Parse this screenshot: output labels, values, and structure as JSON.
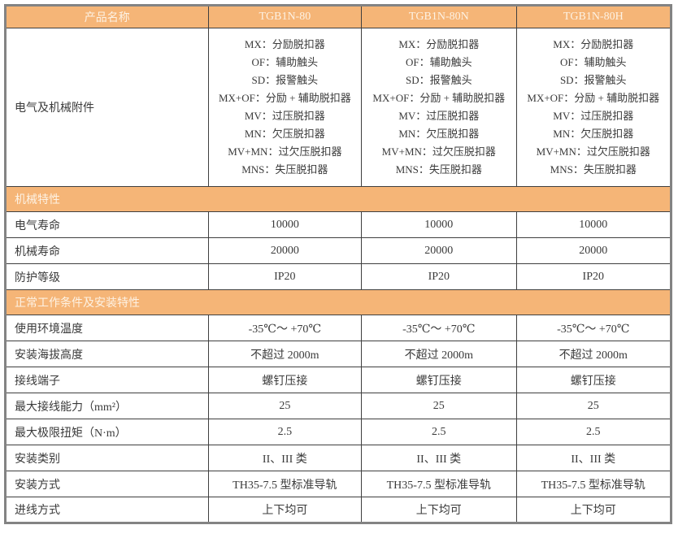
{
  "colors": {
    "orange": "#f5b577",
    "header-text": "#fdf2e4",
    "border-outer": "#838383",
    "border-inner": "#3f3f3f",
    "body-text": "#3a3a3a"
  },
  "table": {
    "header": {
      "label": "产品名称",
      "products": [
        "TGB1N-80",
        "TGB1N-80N",
        "TGB1N-80H"
      ]
    },
    "accessories": {
      "label": "电气及机械附件",
      "lines": [
        "MX：分励脱扣器",
        "OF：辅助触头",
        "SD：报警触头",
        "MX+OF：分励 + 辅助脱扣器",
        "MV：过压脱扣器",
        "MN：欠压脱扣器",
        "MV+MN：过欠压脱扣器",
        "MNS：失压脱扣器"
      ]
    },
    "sections": [
      {
        "title": "机械特性",
        "rows": [
          {
            "label": "电气寿命",
            "values": [
              "10000",
              "10000",
              "10000"
            ]
          },
          {
            "label": "机械寿命",
            "values": [
              "20000",
              "20000",
              "20000"
            ]
          },
          {
            "label": "防护等级",
            "values": [
              "IP20",
              "IP20",
              "IP20"
            ]
          }
        ]
      },
      {
        "title": "正常工作条件及安装特性",
        "rows": [
          {
            "label": "使用环境温度",
            "values": [
              "-35℃～ +70℃",
              "-35℃～ +70℃",
              "-35℃～ +70℃"
            ]
          },
          {
            "label": "安装海拔高度",
            "values": [
              "不超过 2000m",
              "不超过 2000m",
              "不超过 2000m"
            ]
          },
          {
            "label": "接线端子",
            "values": [
              "螺钉压接",
              "螺钉压接",
              "螺钉压接"
            ]
          },
          {
            "label": "最大接线能力（mm²）",
            "values": [
              "25",
              "25",
              "25"
            ]
          },
          {
            "label": "最大极限扭矩（N·m）",
            "values": [
              "2.5",
              "2.5",
              "2.5"
            ]
          },
          {
            "label": "安装类别",
            "values": [
              "II、III 类",
              "II、III 类",
              "II、III 类"
            ]
          },
          {
            "label": "安装方式",
            "values": [
              "TH35-7.5 型标准导轨",
              "TH35-7.5 型标准导轨",
              "TH35-7.5 型标准导轨"
            ]
          },
          {
            "label": "进线方式",
            "values": [
              "上下均可",
              "上下均可",
              "上下均可"
            ]
          }
        ]
      }
    ]
  }
}
